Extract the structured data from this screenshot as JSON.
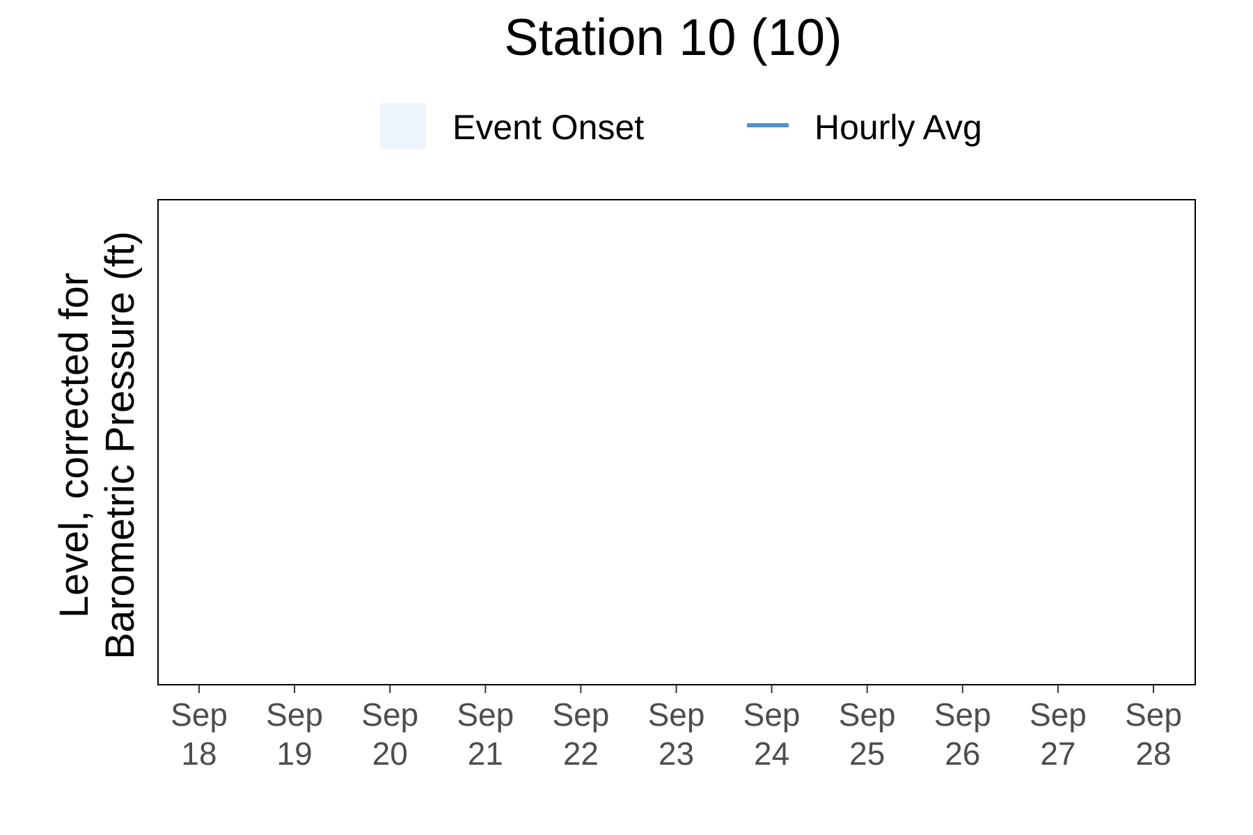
{
  "chart_data": {
    "type": "line",
    "title": "Station 10 (10)",
    "xlabel": "",
    "ylabel": [
      "Level, corrected for",
      "Barometric Pressure (ft)"
    ],
    "x_ticks": [
      {
        "month": "Sep",
        "day": "18"
      },
      {
        "month": "Sep",
        "day": "19"
      },
      {
        "month": "Sep",
        "day": "20"
      },
      {
        "month": "Sep",
        "day": "21"
      },
      {
        "month": "Sep",
        "day": "22"
      },
      {
        "month": "Sep",
        "day": "23"
      },
      {
        "month": "Sep",
        "day": "24"
      },
      {
        "month": "Sep",
        "day": "25"
      },
      {
        "month": "Sep",
        "day": "26"
      },
      {
        "month": "Sep",
        "day": "27"
      },
      {
        "month": "Sep",
        "day": "28"
      }
    ],
    "legend": {
      "placement": "top",
      "entries": [
        {
          "label": "Event Onset",
          "kind": "fill",
          "color": "#eef4fb"
        },
        {
          "label": "Hourly Avg",
          "kind": "line",
          "color": "#4f92cc"
        }
      ]
    },
    "series": [
      {
        "name": "Hourly Avg",
        "values": []
      }
    ],
    "events": [],
    "grid": false
  }
}
